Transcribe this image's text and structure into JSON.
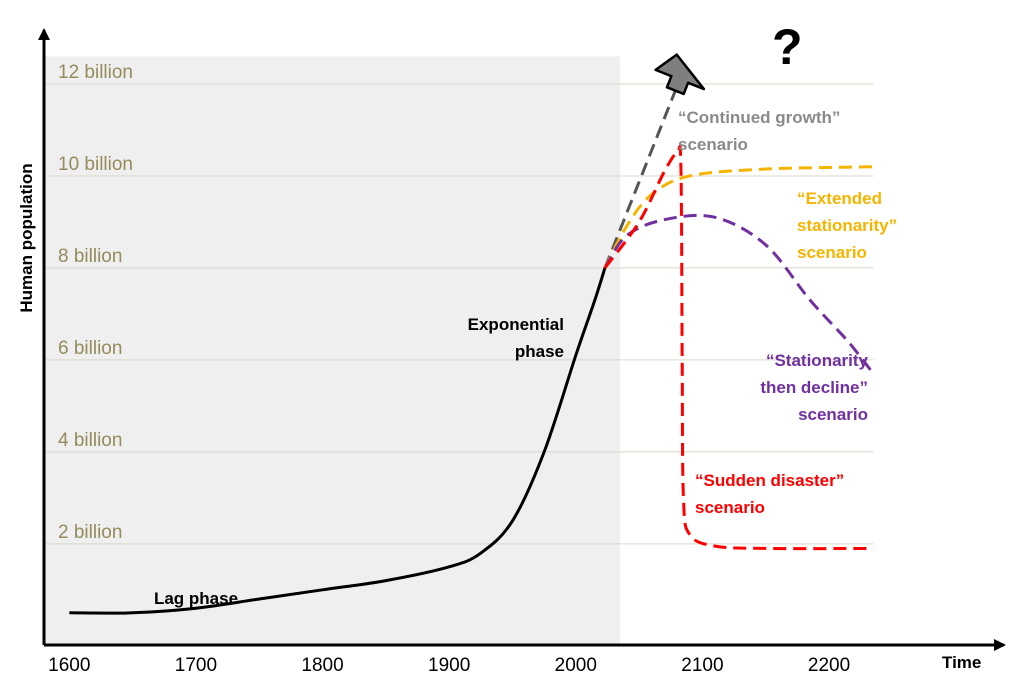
{
  "chart_data": {
    "type": "line",
    "title": "",
    "xlabel": "Time",
    "ylabel": "Human population",
    "xlim": [
      1580,
      2335
    ],
    "ylim": [
      -0.2,
      13
    ],
    "x_ticks": [
      1600,
      1700,
      1800,
      1900,
      2000,
      2100,
      2200
    ],
    "x_tick_labels": [
      "1600",
      "1700",
      "1800",
      "1900",
      "2000",
      "2100",
      "2200"
    ],
    "y_gridlines": [
      2,
      4,
      6,
      8,
      10,
      12
    ],
    "y_tick_labels": [
      "2 billion",
      "4 billion",
      "6 billion",
      "8 billion",
      "10 billion",
      "12 billion"
    ],
    "grid": true,
    "shaded_region": {
      "from": 1580,
      "to": 2035,
      "color": "#efefef"
    },
    "question_mark": "?",
    "series": [
      {
        "style": "solid",
        "color": "#000000",
        "points": [
          [
            1600,
            0.5
          ],
          [
            1650,
            0.5
          ],
          [
            1700,
            0.6
          ],
          [
            1750,
            0.8
          ],
          [
            1800,
            1.0
          ],
          [
            1850,
            1.2
          ],
          [
            1900,
            1.5
          ],
          [
            1925,
            1.8
          ],
          [
            1950,
            2.5
          ],
          [
            1975,
            4.0
          ],
          [
            2000,
            6.1
          ],
          [
            2015,
            7.3
          ],
          [
            2023,
            8.0
          ]
        ]
      },
      {
        "style": "dashed",
        "color": "#555555",
        "points": [
          [
            2023,
            8.0
          ],
          [
            2085,
            12.3
          ]
        ],
        "arrow": true
      },
      {
        "style": "dashed",
        "color": "#f5b400",
        "points": [
          [
            2023,
            8.0
          ],
          [
            2040,
            8.9
          ],
          [
            2060,
            9.6
          ],
          [
            2090,
            10.0
          ],
          [
            2150,
            10.15
          ],
          [
            2235,
            10.2
          ]
        ]
      },
      {
        "style": "dashed",
        "color": "#7030a0",
        "points": [
          [
            2023,
            8.0
          ],
          [
            2040,
            8.7
          ],
          [
            2070,
            9.05
          ],
          [
            2110,
            9.1
          ],
          [
            2150,
            8.5
          ],
          [
            2185,
            7.3
          ],
          [
            2215,
            6.4
          ],
          [
            2235,
            5.7
          ]
        ]
      },
      {
        "style": "dashed",
        "color": "#ff0000",
        "points": [
          [
            2023,
            8.0
          ],
          [
            2050,
            9.0
          ],
          [
            2070,
            10.1
          ],
          [
            2080,
            10.5
          ],
          [
            2083,
            10.2
          ],
          [
            2084,
            6.0
          ],
          [
            2085,
            3.0
          ],
          [
            2090,
            2.2
          ],
          [
            2110,
            1.95
          ],
          [
            2150,
            1.9
          ],
          [
            2235,
            1.9
          ]
        ]
      }
    ],
    "annotations": [
      {
        "id": "lag",
        "lines": [
          "Lag phase"
        ],
        "color": "#000000",
        "anchor": "middle"
      },
      {
        "id": "exponential",
        "lines": [
          "Exponential",
          "phase"
        ],
        "color": "#000000",
        "anchor": "end"
      },
      {
        "id": "continued",
        "lines": [
          "“Continued growth”",
          "scenario"
        ],
        "color": "#8a8a8a",
        "anchor": "start"
      },
      {
        "id": "extended",
        "lines": [
          "“Extended",
          "stationarity”",
          "scenario"
        ],
        "color": "#f5b400",
        "anchor": "start"
      },
      {
        "id": "decline",
        "lines": [
          "“Stationarity",
          "then decline”",
          "scenario"
        ],
        "color": "#7030a0",
        "anchor": "end"
      },
      {
        "id": "disaster",
        "lines": [
          "“Sudden disaster”",
          "scenario"
        ],
        "color": "#ff0000",
        "anchor": "start"
      }
    ],
    "colors": {
      "axis": "#000000",
      "grid": "#d8d8c8",
      "y_label": "#958b5c"
    }
  }
}
